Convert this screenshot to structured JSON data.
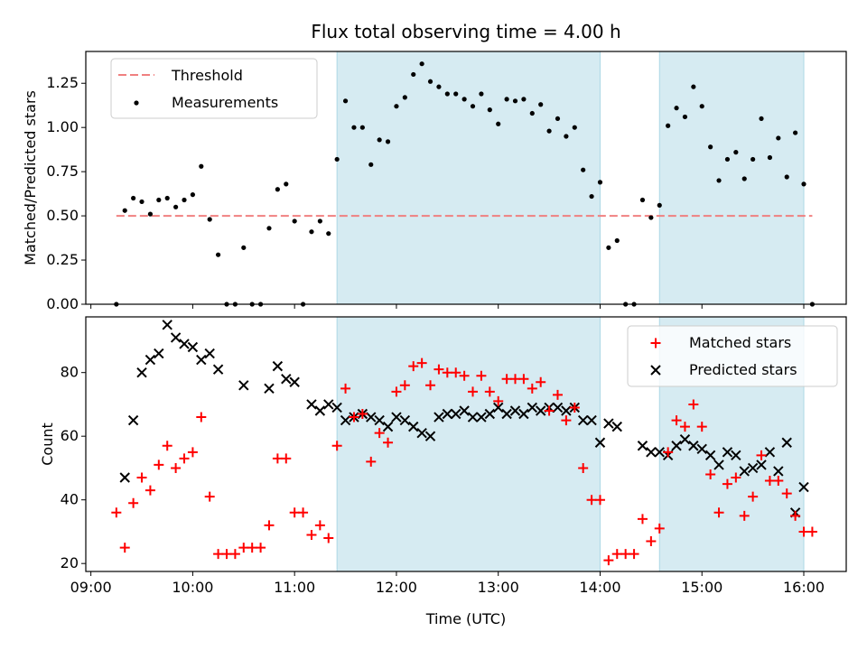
{
  "chart_data": [
    {
      "type": "scatter",
      "panel": "top",
      "title": "Flux total observing time = 4.00 h",
      "xlabel": "",
      "ylabel": "Matched/Predicted stars",
      "ylim": [
        0,
        1.43
      ],
      "yticks": [
        "0.00",
        "0.25",
        "0.50",
        "0.75",
        "1.00",
        "1.25"
      ],
      "legend_placement": "top-left",
      "shaded_intervals": [
        [
          "11:25",
          "14:00"
        ],
        [
          "14:35",
          "16:00"
        ]
      ],
      "threshold": {
        "name": "Threshold",
        "y": 0.5,
        "x_range": [
          "09:15",
          "16:05"
        ],
        "color": "#f08080"
      },
      "series": [
        {
          "name": "Measurements",
          "color": "#000000",
          "points": [
            [
              "09:15",
              0.0
            ],
            [
              "09:20",
              0.53
            ],
            [
              "09:25",
              0.6
            ],
            [
              "09:30",
              0.58
            ],
            [
              "09:35",
              0.51
            ],
            [
              "09:40",
              0.59
            ],
            [
              "09:45",
              0.6
            ],
            [
              "09:50",
              0.55
            ],
            [
              "09:55",
              0.59
            ],
            [
              "10:00",
              0.62
            ],
            [
              "10:05",
              0.78
            ],
            [
              "10:10",
              0.48
            ],
            [
              "10:15",
              0.28
            ],
            [
              "10:20",
              0.0
            ],
            [
              "10:25",
              0.0
            ],
            [
              "10:30",
              0.32
            ],
            [
              "10:35",
              0.0
            ],
            [
              "10:40",
              0.0
            ],
            [
              "10:45",
              0.43
            ],
            [
              "10:50",
              0.65
            ],
            [
              "10:55",
              0.68
            ],
            [
              "11:00",
              0.47
            ],
            [
              "11:05",
              0.0
            ],
            [
              "11:10",
              0.41
            ],
            [
              "11:15",
              0.47
            ],
            [
              "11:20",
              0.4
            ],
            [
              "11:25",
              0.82
            ],
            [
              "11:30",
              1.15
            ],
            [
              "11:35",
              1.0
            ],
            [
              "11:40",
              1.0
            ],
            [
              "11:45",
              0.79
            ],
            [
              "11:50",
              0.93
            ],
            [
              "11:55",
              0.92
            ],
            [
              "12:00",
              1.12
            ],
            [
              "12:05",
              1.17
            ],
            [
              "12:10",
              1.3
            ],
            [
              "12:15",
              1.36
            ],
            [
              "12:20",
              1.26
            ],
            [
              "12:25",
              1.23
            ],
            [
              "12:30",
              1.19
            ],
            [
              "12:35",
              1.19
            ],
            [
              "12:40",
              1.16
            ],
            [
              "12:45",
              1.12
            ],
            [
              "12:50",
              1.19
            ],
            [
              "12:55",
              1.1
            ],
            [
              "13:00",
              1.02
            ],
            [
              "13:05",
              1.16
            ],
            [
              "13:10",
              1.15
            ],
            [
              "13:15",
              1.16
            ],
            [
              "13:20",
              1.08
            ],
            [
              "13:25",
              1.13
            ],
            [
              "13:30",
              0.98
            ],
            [
              "13:35",
              1.05
            ],
            [
              "13:40",
              0.95
            ],
            [
              "13:45",
              1.0
            ],
            [
              "13:50",
              0.76
            ],
            [
              "13:55",
              0.61
            ],
            [
              "14:00",
              0.69
            ],
            [
              "14:05",
              0.32
            ],
            [
              "14:10",
              0.36
            ],
            [
              "14:15",
              0.0
            ],
            [
              "14:20",
              0.0
            ],
            [
              "14:25",
              0.59
            ],
            [
              "14:30",
              0.49
            ],
            [
              "14:35",
              0.56
            ],
            [
              "14:40",
              1.01
            ],
            [
              "14:45",
              1.11
            ],
            [
              "14:50",
              1.06
            ],
            [
              "14:55",
              1.23
            ],
            [
              "15:00",
              1.12
            ],
            [
              "15:05",
              0.89
            ],
            [
              "15:10",
              0.7
            ],
            [
              "15:15",
              0.82
            ],
            [
              "15:20",
              0.86
            ],
            [
              "15:25",
              0.71
            ],
            [
              "15:30",
              0.82
            ],
            [
              "15:35",
              1.05
            ],
            [
              "15:40",
              0.83
            ],
            [
              "15:45",
              0.94
            ],
            [
              "15:50",
              0.72
            ],
            [
              "15:55",
              0.97
            ],
            [
              "16:00",
              0.68
            ],
            [
              "16:05",
              0.0
            ]
          ]
        }
      ]
    },
    {
      "type": "scatter",
      "panel": "bottom",
      "title": "",
      "xlabel": "Time (UTC)",
      "ylabel": "Count",
      "xlim": [
        "08:57",
        "16:25"
      ],
      "ylim": [
        17.5,
        97.5
      ],
      "xticks": [
        "09:00",
        "10:00",
        "11:00",
        "12:00",
        "13:00",
        "14:00",
        "15:00",
        "16:00"
      ],
      "yticks": [
        "20",
        "40",
        "60",
        "80"
      ],
      "legend_placement": "top-right",
      "shaded_intervals": [
        [
          "11:25",
          "14:00"
        ],
        [
          "14:35",
          "16:00"
        ]
      ],
      "series": [
        {
          "name": "Matched stars",
          "marker": "+",
          "color": "#ff0000",
          "points": [
            [
              "09:15",
              36
            ],
            [
              "09:20",
              25
            ],
            [
              "09:25",
              39
            ],
            [
              "09:30",
              47
            ],
            [
              "09:35",
              43
            ],
            [
              "09:40",
              51
            ],
            [
              "09:45",
              57
            ],
            [
              "09:50",
              50
            ],
            [
              "09:55",
              53
            ],
            [
              "10:00",
              55
            ],
            [
              "10:05",
              66
            ],
            [
              "10:10",
              41
            ],
            [
              "10:15",
              23
            ],
            [
              "10:20",
              23
            ],
            [
              "10:25",
              23
            ],
            [
              "10:30",
              25
            ],
            [
              "10:35",
              25
            ],
            [
              "10:40",
              25
            ],
            [
              "10:45",
              32
            ],
            [
              "10:50",
              53
            ],
            [
              "10:55",
              53
            ],
            [
              "11:00",
              36
            ],
            [
              "11:05",
              36
            ],
            [
              "11:10",
              29
            ],
            [
              "11:15",
              32
            ],
            [
              "11:20",
              28
            ],
            [
              "11:25",
              57
            ],
            [
              "11:30",
              75
            ],
            [
              "11:35",
              66
            ],
            [
              "11:40",
              67
            ],
            [
              "11:45",
              52
            ],
            [
              "11:50",
              61
            ],
            [
              "11:55",
              58
            ],
            [
              "12:00",
              74
            ],
            [
              "12:05",
              76
            ],
            [
              "12:10",
              82
            ],
            [
              "12:15",
              83
            ],
            [
              "12:20",
              76
            ],
            [
              "12:25",
              81
            ],
            [
              "12:30",
              80
            ],
            [
              "12:35",
              80
            ],
            [
              "12:40",
              79
            ],
            [
              "12:45",
              74
            ],
            [
              "12:50",
              79
            ],
            [
              "12:55",
              74
            ],
            [
              "13:00",
              71
            ],
            [
              "13:05",
              78
            ],
            [
              "13:10",
              78
            ],
            [
              "13:15",
              78
            ],
            [
              "13:20",
              75
            ],
            [
              "13:25",
              77
            ],
            [
              "13:30",
              68
            ],
            [
              "13:35",
              73
            ],
            [
              "13:40",
              65
            ],
            [
              "13:45",
              69
            ],
            [
              "13:50",
              50
            ],
            [
              "13:55",
              40
            ],
            [
              "14:00",
              40
            ],
            [
              "14:05",
              21
            ],
            [
              "14:10",
              23
            ],
            [
              "14:15",
              23
            ],
            [
              "14:20",
              23
            ],
            [
              "14:25",
              34
            ],
            [
              "14:30",
              27
            ],
            [
              "14:35",
              31
            ],
            [
              "14:40",
              55
            ],
            [
              "14:45",
              65
            ],
            [
              "14:50",
              63
            ],
            [
              "14:55",
              70
            ],
            [
              "15:00",
              63
            ],
            [
              "15:05",
              48
            ],
            [
              "15:10",
              36
            ],
            [
              "15:15",
              45
            ],
            [
              "15:20",
              47
            ],
            [
              "15:25",
              35
            ],
            [
              "15:30",
              41
            ],
            [
              "15:35",
              54
            ],
            [
              "15:40",
              46
            ],
            [
              "15:45",
              46
            ],
            [
              "15:50",
              42
            ],
            [
              "15:55",
              35
            ],
            [
              "16:00",
              30
            ],
            [
              "16:05",
              30
            ]
          ]
        },
        {
          "name": "Predicted stars",
          "marker": "x",
          "color": "#000000",
          "points": [
            [
              "09:20",
              47
            ],
            [
              "09:25",
              65
            ],
            [
              "09:30",
              80
            ],
            [
              "09:35",
              84
            ],
            [
              "09:40",
              86
            ],
            [
              "09:45",
              95
            ],
            [
              "09:50",
              91
            ],
            [
              "09:55",
              89
            ],
            [
              "10:00",
              88
            ],
            [
              "10:05",
              84
            ],
            [
              "10:10",
              86
            ],
            [
              "10:15",
              81
            ],
            [
              "10:30",
              76
            ],
            [
              "10:45",
              75
            ],
            [
              "10:50",
              82
            ],
            [
              "10:55",
              78
            ],
            [
              "11:00",
              77
            ],
            [
              "11:10",
              70
            ],
            [
              "11:15",
              68
            ],
            [
              "11:20",
              70
            ],
            [
              "11:25",
              69
            ],
            [
              "11:30",
              65
            ],
            [
              "11:35",
              66
            ],
            [
              "11:40",
              67
            ],
            [
              "11:45",
              66
            ],
            [
              "11:50",
              65
            ],
            [
              "11:55",
              63
            ],
            [
              "12:00",
              66
            ],
            [
              "12:05",
              65
            ],
            [
              "12:10",
              63
            ],
            [
              "12:15",
              61
            ],
            [
              "12:20",
              60
            ],
            [
              "12:25",
              66
            ],
            [
              "12:30",
              67
            ],
            [
              "12:35",
              67
            ],
            [
              "12:40",
              68
            ],
            [
              "12:45",
              66
            ],
            [
              "12:50",
              66
            ],
            [
              "12:55",
              67
            ],
            [
              "13:00",
              69
            ],
            [
              "13:05",
              67
            ],
            [
              "13:10",
              68
            ],
            [
              "13:15",
              67
            ],
            [
              "13:20",
              69
            ],
            [
              "13:25",
              68
            ],
            [
              "13:30",
              69
            ],
            [
              "13:35",
              69
            ],
            [
              "13:40",
              68
            ],
            [
              "13:45",
              69
            ],
            [
              "13:50",
              65
            ],
            [
              "13:55",
              65
            ],
            [
              "14:00",
              58
            ],
            [
              "14:05",
              64
            ],
            [
              "14:10",
              63
            ],
            [
              "14:25",
              57
            ],
            [
              "14:30",
              55
            ],
            [
              "14:35",
              55
            ],
            [
              "14:40",
              54
            ],
            [
              "14:45",
              57
            ],
            [
              "14:50",
              59
            ],
            [
              "14:55",
              57
            ],
            [
              "15:00",
              56
            ],
            [
              "15:05",
              54
            ],
            [
              "15:10",
              51
            ],
            [
              "15:15",
              55
            ],
            [
              "15:20",
              54
            ],
            [
              "15:25",
              49
            ],
            [
              "15:30",
              50
            ],
            [
              "15:35",
              51
            ],
            [
              "15:40",
              55
            ],
            [
              "15:45",
              49
            ],
            [
              "15:50",
              58
            ],
            [
              "15:55",
              36
            ],
            [
              "16:00",
              44
            ]
          ]
        }
      ]
    }
  ],
  "colors": {
    "shade": "#add8e6",
    "shade_alpha": 0.5,
    "threshold": "#f08080",
    "matched": "#ff0000",
    "predicted": "#000000"
  }
}
